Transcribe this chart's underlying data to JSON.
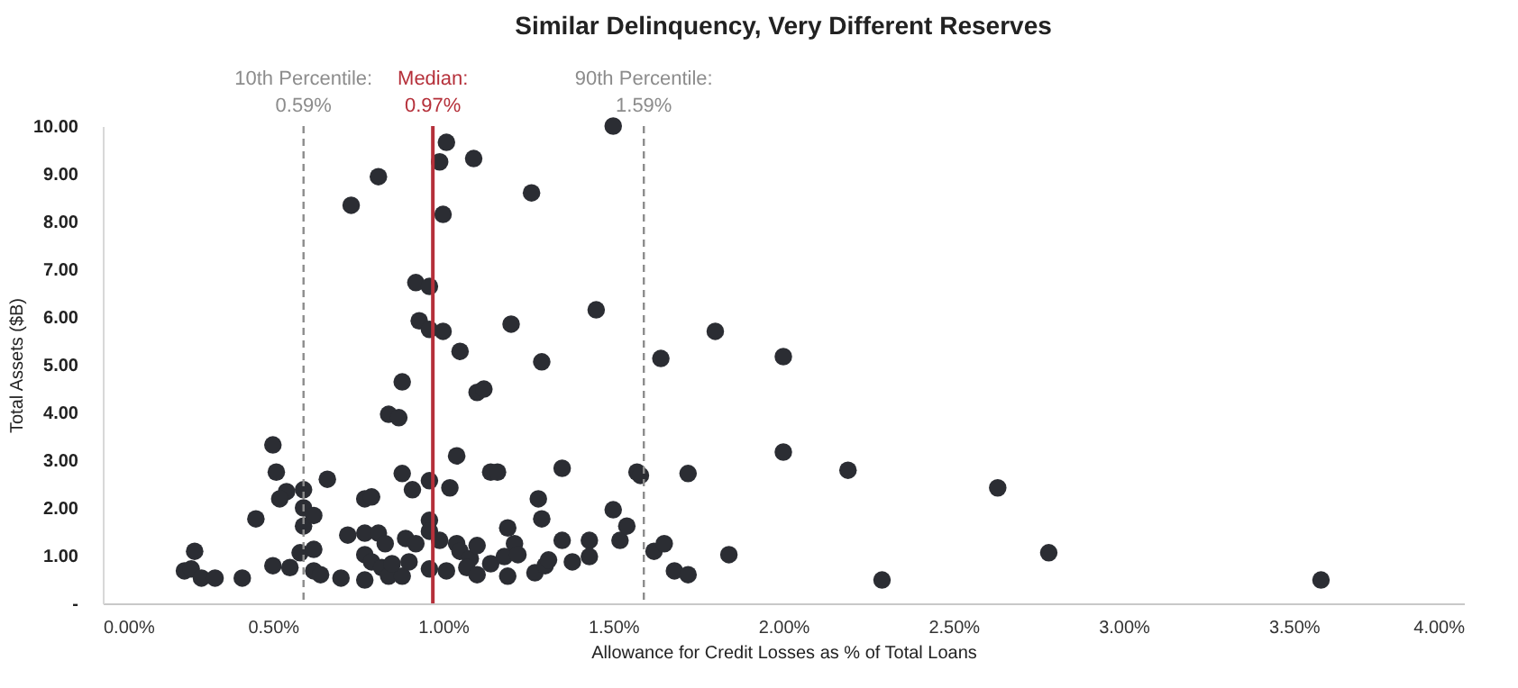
{
  "chart_data": {
    "type": "scatter",
    "title": "Similar Delinquency, Very Different Reserves",
    "xlabel": "Allowance for Credit Losses as % of Total Loans",
    "ylabel": "Total Assets ($B)",
    "xlim": [
      0,
      4
    ],
    "ylim": [
      0,
      10
    ],
    "xticks": [
      {
        "value": 0,
        "label": "0.00%"
      },
      {
        "value": 0.5,
        "label": "0.50%"
      },
      {
        "value": 1,
        "label": "1.00%"
      },
      {
        "value": 1.5,
        "label": "1.50%"
      },
      {
        "value": 2,
        "label": "2.00%"
      },
      {
        "value": 2.5,
        "label": "2.50%"
      },
      {
        "value": 3,
        "label": "3.00%"
      },
      {
        "value": 3.5,
        "label": "3.50%"
      },
      {
        "value": 4,
        "label": "4.00%"
      }
    ],
    "yticks": [
      {
        "value": 0,
        "label": "-"
      },
      {
        "value": 1,
        "label": "1.00"
      },
      {
        "value": 2,
        "label": "2.00"
      },
      {
        "value": 3,
        "label": "3.00"
      },
      {
        "value": 4,
        "label": "4.00"
      },
      {
        "value": 5,
        "label": "5.00"
      },
      {
        "value": 6,
        "label": "6.00"
      },
      {
        "value": 7,
        "label": "7.00"
      },
      {
        "value": 8,
        "label": "8.00"
      },
      {
        "value": 9,
        "label": "9.00"
      },
      {
        "value": 10,
        "label": "10.00"
      }
    ],
    "grid": false,
    "marker": "circle",
    "series": [
      {
        "color": "#2b2d33",
        "x": [
          1.5,
          1.01,
          0.99,
          1.09,
          0.81,
          0.73,
          1.26,
          1.0,
          0.92,
          0.96,
          0.93,
          0.96,
          1.0,
          1.2,
          1.45,
          1.8,
          1.05,
          1.29,
          1.64,
          2.0,
          0.88,
          1.1,
          1.12,
          0.84,
          0.87,
          0.5,
          1.04,
          2.0,
          0.51,
          0.54,
          0.52,
          0.59,
          0.59,
          0.59,
          0.62,
          0.66,
          0.45,
          0.58,
          0.62,
          0.27,
          0.24,
          0.26,
          0.29,
          0.33,
          0.41,
          0.5,
          0.55,
          0.62,
          0.64,
          0.7,
          0.77,
          0.79,
          0.72,
          0.77,
          0.81,
          0.83,
          0.77,
          0.79,
          0.77,
          0.82,
          0.84,
          0.88,
          0.85,
          0.88,
          0.91,
          0.89,
          0.92,
          0.9,
          0.96,
          0.96,
          0.96,
          0.99,
          0.96,
          1.01,
          1.02,
          1.04,
          1.05,
          1.08,
          1.07,
          1.1,
          1.1,
          1.14,
          1.16,
          1.14,
          1.18,
          1.19,
          1.19,
          1.21,
          1.22,
          1.28,
          1.29,
          1.27,
          1.3,
          1.31,
          1.35,
          1.35,
          1.38,
          1.43,
          1.43,
          1.52,
          1.5,
          1.54,
          1.57,
          1.58,
          1.72,
          1.62,
          1.65,
          1.68,
          1.72,
          1.84,
          2.19,
          2.29,
          2.63,
          2.78,
          3.58
        ],
        "values": [
          10.0,
          9.66,
          9.25,
          9.32,
          8.94,
          8.34,
          8.6,
          8.15,
          6.72,
          6.64,
          5.92,
          5.74,
          5.7,
          5.85,
          6.15,
          5.7,
          5.28,
          5.06,
          5.13,
          5.17,
          4.64,
          4.42,
          4.49,
          3.96,
          3.89,
          3.32,
          3.09,
          3.17,
          2.75,
          2.34,
          2.19,
          2.38,
          2.0,
          1.62,
          1.84,
          2.6,
          1.77,
          1.06,
          1.13,
          1.09,
          0.68,
          0.72,
          0.53,
          0.53,
          0.53,
          0.79,
          0.75,
          0.68,
          0.6,
          0.53,
          2.19,
          2.23,
          1.43,
          1.47,
          1.47,
          1.25,
          1.02,
          0.87,
          0.49,
          0.75,
          0.57,
          0.57,
          0.83,
          2.72,
          2.38,
          1.36,
          1.25,
          0.87,
          2.57,
          1.74,
          1.51,
          1.32,
          0.72,
          0.68,
          2.42,
          1.25,
          1.09,
          0.94,
          0.75,
          1.21,
          0.6,
          2.75,
          2.75,
          0.83,
          0.98,
          1.58,
          0.57,
          1.25,
          1.02,
          2.19,
          1.77,
          0.64,
          0.79,
          0.91,
          2.83,
          1.32,
          0.87,
          1.32,
          0.98,
          1.32,
          1.96,
          1.62,
          2.75,
          2.68,
          2.72,
          1.09,
          1.25,
          0.68,
          0.6,
          1.02,
          2.79,
          0.49,
          2.42,
          1.06,
          0.49
        ]
      }
    ],
    "ref_lines": [
      {
        "axis": "x",
        "value": 0.59,
        "label": "10th Percentile:\n0.59%",
        "color": "#8c8c8c",
        "line_style": "dashed"
      },
      {
        "axis": "x",
        "value": 0.97,
        "label": "Median:\n0.97%",
        "color": "#b5303a",
        "line_style": "solid"
      },
      {
        "axis": "x",
        "value": 1.59,
        "label": "90th Percentile:\n1.59%",
        "color": "#8c8c8c",
        "line_style": "dashed"
      }
    ]
  }
}
